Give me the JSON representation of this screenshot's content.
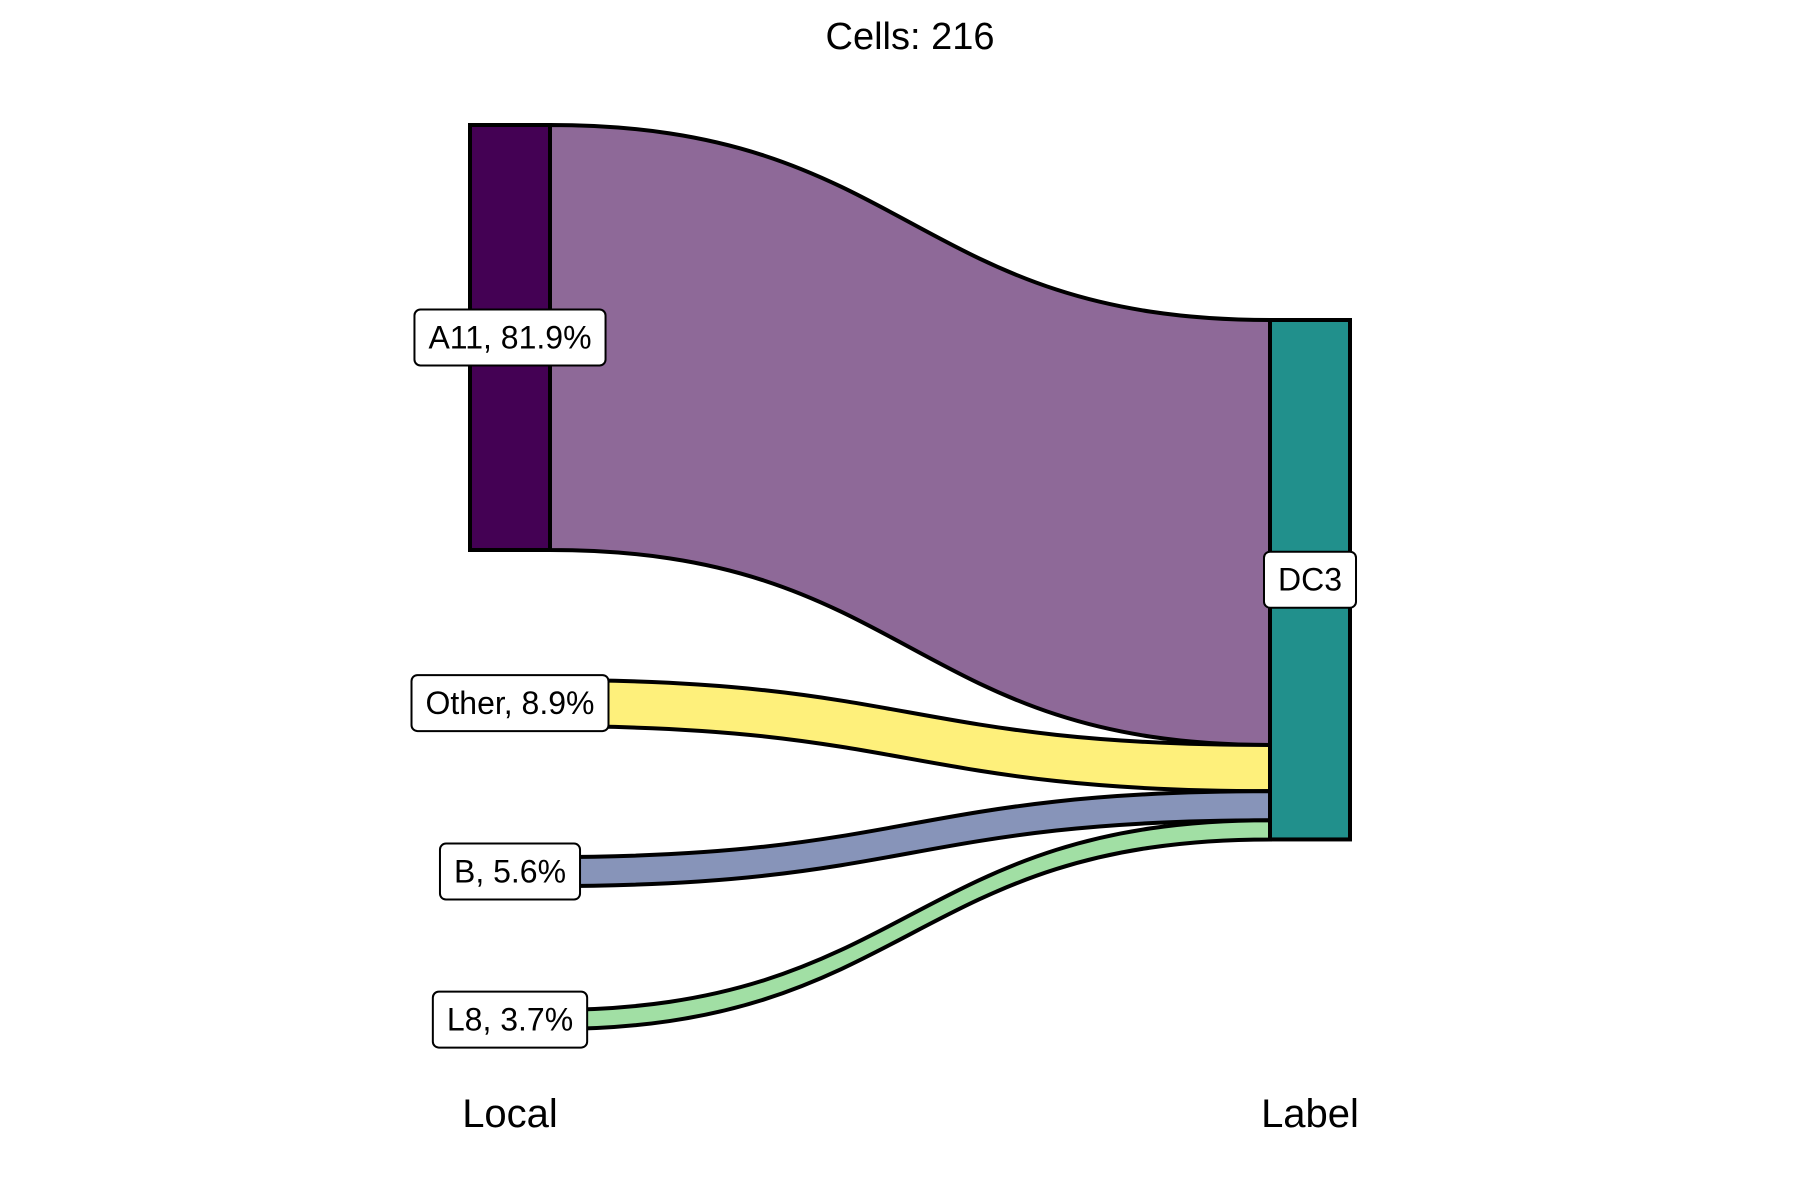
{
  "chart_data": {
    "type": "sankey",
    "title": "Cells:  216",
    "total": 216,
    "axes": [
      "Local",
      "Label"
    ],
    "source_nodes": [
      {
        "name": "A11",
        "label": "A11, 81.9%",
        "percent": 81.9,
        "color": "#440154"
      },
      {
        "name": "Other",
        "label": "Other, 8.9%",
        "percent": 8.9,
        "color": "#FDE725"
      },
      {
        "name": "B",
        "label": "B, 5.6%",
        "percent": 5.6,
        "color": "#3B528B"
      },
      {
        "name": "L8",
        "label": "L8, 3.7%",
        "percent": 3.7,
        "color": "#5DC863"
      }
    ],
    "target_nodes": [
      {
        "name": "DC3",
        "label": "DC3",
        "percent": 100,
        "color": "#21908C"
      }
    ],
    "flows": [
      {
        "source": "A11",
        "target": "DC3",
        "percent": 81.9,
        "color": "#8E6998"
      },
      {
        "source": "Other",
        "target": "DC3",
        "percent": 8.9,
        "color": "#FEF07B"
      },
      {
        "source": "B",
        "target": "DC3",
        "percent": 5.6,
        "color": "#8794B9"
      },
      {
        "source": "L8",
        "target": "DC3",
        "percent": 3.7,
        "color": "#A1DFA4"
      }
    ]
  }
}
